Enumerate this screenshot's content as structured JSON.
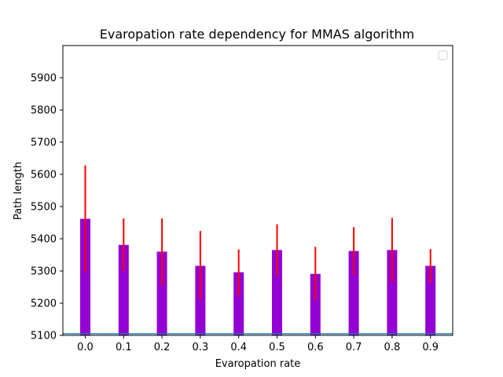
{
  "chart_data": {
    "type": "bar",
    "title": "Evaropation rate dependency for MMAS algorithm",
    "xlabel": "Evaropation rate",
    "ylabel": "Path length",
    "categories": [
      "0.0",
      "0.1",
      "0.2",
      "0.3",
      "0.4",
      "0.5",
      "0.6",
      "0.7",
      "0.8",
      "0.9"
    ],
    "values": [
      5462,
      5381,
      5360,
      5316,
      5296,
      5365,
      5291,
      5362,
      5365,
      5316
    ],
    "error_low": [
      5295,
      5300,
      5255,
      5210,
      5222,
      5285,
      5208,
      5288,
      5265,
      5262
    ],
    "error_high": [
      5628,
      5463,
      5463,
      5424,
      5367,
      5445,
      5375,
      5436,
      5465,
      5368
    ],
    "reference_line": 5105,
    "ylim": [
      5100,
      6000
    ],
    "yticks": [
      5100,
      5200,
      5300,
      5400,
      5500,
      5600,
      5700,
      5800,
      5900
    ],
    "bar_color": "#9400d3",
    "error_color": "#ff0000",
    "reference_line_color": "#1f77b4",
    "legend": {
      "placement": "top-right",
      "entries": []
    },
    "grid": false
  }
}
